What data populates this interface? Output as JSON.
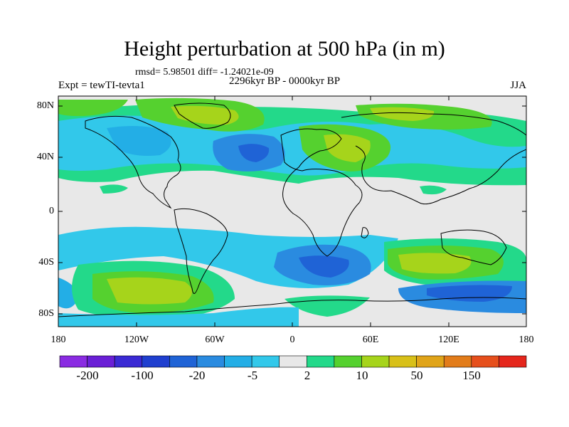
{
  "plot": {
    "title": "Height perturbation at 500 hPa (in m)",
    "stats": "rmsd= 5.98501 diff= -1.24021e-09",
    "experiment": "Expt = tewTI-tevta1",
    "period": "2296kyr BP - 0000kyr BP",
    "season": "JJA"
  },
  "axes": {
    "lat_labels": [
      "80N",
      "40N",
      "0",
      "40S",
      "80S"
    ],
    "lon_labels": [
      "180",
      "120W",
      "60W",
      "0",
      "60E",
      "120E",
      "180"
    ]
  },
  "colorbar": {
    "labels": [
      "-200",
      "-100",
      "-20",
      "-5",
      "2",
      "10",
      "50",
      "150"
    ],
    "colors": [
      "#8a2be2",
      "#6a1fd6",
      "#3a2ad4",
      "#1f3fcf",
      "#1f63d6",
      "#2a8be0",
      "#23aee6",
      "#32c8ea",
      "#e8e8e8",
      "#23d98a",
      "#55d12f",
      "#a6d41b",
      "#d8c018",
      "#e0a419",
      "#e27c1a",
      "#e64f1c",
      "#e5261c"
    ]
  },
  "map_colors": {
    "land_outline": "#000000",
    "neutral": "#e8e8e8",
    "light_blue": "#32c8ea",
    "mid_blue": "#23aee6",
    "blue": "#2a8be0",
    "deep_blue": "#1f63d6",
    "teal": "#23d98a",
    "green": "#55d12f",
    "yellow_green": "#a6d41b",
    "yellow": "#d8c018"
  }
}
